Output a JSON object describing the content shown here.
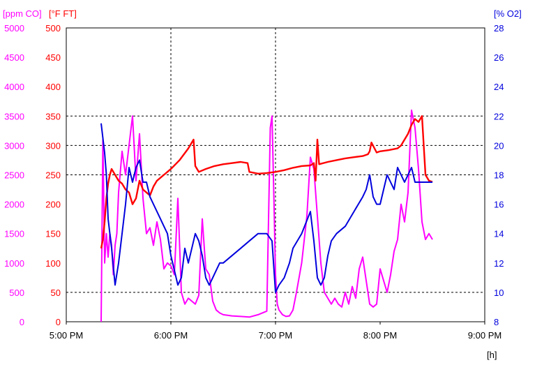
{
  "chart_data": {
    "type": "line",
    "x_ticks": [
      "5:00 PM",
      "6:00 PM",
      "7:00 PM",
      "8:00 PM",
      "9:00 PM"
    ],
    "x_unit_label": "[h]",
    "x_range_hours": [
      17,
      21
    ],
    "axes": {
      "co": {
        "label": "[ppm CO]",
        "color": "#ff00ff",
        "ylim": [
          0,
          5000
        ],
        "ticks": [
          "5000",
          "4500",
          "4000",
          "3500",
          "3000",
          "2500",
          "2000",
          "1500",
          "1000",
          "500",
          "0"
        ]
      },
      "ft": {
        "label": "[°F FT]",
        "color": "#ff0000",
        "ylim": [
          0,
          500
        ],
        "ticks": [
          "500",
          "450",
          "400",
          "350",
          "300",
          "250",
          "200",
          "150",
          "100",
          "50",
          "0"
        ]
      },
      "o2": {
        "label": "[% O2]",
        "color": "#0000dd",
        "ylim": [
          8,
          28
        ],
        "ticks": [
          "28",
          "26",
          "24",
          "22",
          "20",
          "18",
          "16",
          "14",
          "12",
          "10",
          "8"
        ]
      }
    },
    "grid": {
      "horizontal_dashed_at_ft": [
        50,
        250,
        300,
        350
      ],
      "vertical_dashed_at": [
        "6:00 PM",
        "7:00 PM"
      ]
    },
    "series": [
      {
        "axis": "co",
        "color": "#ff00ff",
        "x_time": [
          "5:20 PM",
          "5:21 PM",
          "5:22 PM",
          "5:23 PM",
          "5:24 PM",
          "5:25 PM",
          "5:26 PM",
          "5:27 PM",
          "5:28 PM",
          "5:29 PM",
          "5:30 PM",
          "5:32 PM",
          "5:34 PM",
          "5:36 PM",
          "5:38 PM",
          "5:40 PM",
          "5:42 PM",
          "5:44 PM",
          "5:46 PM",
          "5:48 PM",
          "5:50 PM",
          "5:52 PM",
          "5:54 PM",
          "5:56 PM",
          "5:58 PM",
          "6:00 PM",
          "6:02 PM",
          "6:04 PM",
          "6:06 PM",
          "6:08 PM",
          "6:10 PM",
          "6:12 PM",
          "6:14 PM",
          "6:16 PM",
          "6:18 PM",
          "6:20 PM",
          "6:22 PM",
          "6:24 PM",
          "6:26 PM",
          "6:28 PM",
          "6:30 PM",
          "6:35 PM",
          "6:40 PM",
          "6:45 PM",
          "6:50 PM",
          "6:55 PM",
          "6:57 PM",
          "6:58 PM",
          "6:59 PM",
          "7:00 PM",
          "7:01 PM",
          "7:02 PM",
          "7:04 PM",
          "7:06 PM",
          "7:08 PM",
          "7:10 PM",
          "7:12 PM",
          "7:15 PM",
          "7:18 PM",
          "7:20 PM",
          "7:22 PM",
          "7:24 PM",
          "7:26 PM",
          "7:28 PM",
          "7:30 PM",
          "7:32 PM",
          "7:34 PM",
          "7:36 PM",
          "7:38 PM",
          "7:40 PM",
          "7:42 PM",
          "7:44 PM",
          "7:46 PM",
          "7:48 PM",
          "7:50 PM",
          "7:52 PM",
          "7:54 PM",
          "7:56 PM",
          "7:58 PM",
          "8:00 PM",
          "8:02 PM",
          "8:04 PM",
          "8:06 PM",
          "8:08 PM",
          "8:10 PM",
          "8:12 PM",
          "8:14 PM",
          "8:16 PM",
          "8:18 PM",
          "8:20 PM",
          "8:22 PM",
          "8:24 PM",
          "8:26 PM",
          "8:28 PM",
          "8:30 PM"
        ],
        "values": [
          0,
          3100,
          1000,
          1500,
          1100,
          1500,
          1300,
          800,
          1300,
          1500,
          2200,
          2900,
          2500,
          3000,
          3500,
          2400,
          3200,
          2100,
          1500,
          1600,
          1300,
          1700,
          1400,
          900,
          1000,
          950,
          800,
          2100,
          500,
          300,
          400,
          350,
          300,
          450,
          1750,
          900,
          800,
          350,
          200,
          150,
          120,
          100,
          90,
          80,
          120,
          180,
          3300,
          3500,
          2200,
          800,
          300,
          200,
          120,
          90,
          100,
          200,
          500,
          1000,
          1800,
          2800,
          2600,
          1800,
          1000,
          500,
          400,
          300,
          400,
          300,
          250,
          500,
          300,
          600,
          400,
          900,
          1100,
          700,
          300,
          250,
          300,
          900,
          700,
          500,
          800,
          1200,
          1400,
          2000,
          1700,
          2200,
          3600,
          3300,
          2600,
          1700,
          1400,
          1500,
          1400
        ]
      },
      {
        "axis": "ft",
        "color": "#ff0000",
        "x_time": [
          "5:20 PM",
          "5:21 PM",
          "5:22 PM",
          "5:23 PM",
          "5:24 PM",
          "5:25 PM",
          "5:26 PM",
          "5:28 PM",
          "5:30 PM",
          "5:32 PM",
          "5:34 PM",
          "5:36 PM",
          "5:38 PM",
          "5:40 PM",
          "5:42 PM",
          "5:44 PM",
          "5:46 PM",
          "5:48 PM",
          "5:50 PM",
          "5:52 PM",
          "5:54 PM",
          "5:56 PM",
          "5:58 PM",
          "6:00 PM",
          "6:05 PM",
          "6:10 PM",
          "6:13 PM",
          "6:14 PM",
          "6:16 PM",
          "6:20 PM",
          "6:25 PM",
          "6:30 PM",
          "6:35 PM",
          "6:40 PM",
          "6:44 PM",
          "6:45 PM",
          "6:50 PM",
          "6:55 PM",
          "7:00 PM",
          "7:05 PM",
          "7:10 PM",
          "7:15 PM",
          "7:20 PM",
          "7:22 PM",
          "7:23 PM",
          "7:24 PM",
          "7:25 PM",
          "7:30 PM",
          "7:35 PM",
          "7:40 PM",
          "7:45 PM",
          "7:50 PM",
          "7:53 PM",
          "7:54 PM",
          "7:55 PM",
          "7:58 PM",
          "8:00 PM",
          "8:05 PM",
          "8:10 PM",
          "8:12 PM",
          "8:14 PM",
          "8:16 PM",
          "8:18 PM",
          "8:20 PM",
          "8:22 PM",
          "8:24 PM",
          "8:26 PM",
          "8:28 PM",
          "8:30 PM"
        ],
        "values": [
          125,
          140,
          170,
          210,
          235,
          250,
          260,
          250,
          240,
          235,
          225,
          220,
          200,
          210,
          240,
          225,
          220,
          215,
          230,
          240,
          245,
          250,
          255,
          260,
          275,
          295,
          310,
          265,
          255,
          260,
          265,
          268,
          270,
          272,
          270,
          255,
          252,
          253,
          255,
          258,
          262,
          265,
          266,
          270,
          240,
          310,
          268,
          272,
          275,
          278,
          280,
          282,
          285,
          290,
          305,
          288,
          290,
          292,
          295,
          300,
          310,
          320,
          335,
          345,
          340,
          350,
          250,
          240,
          238
        ]
      },
      {
        "axis": "o2",
        "color": "#0000dd",
        "x_time": [
          "5:20 PM",
          "5:21 PM",
          "5:22 PM",
          "5:23 PM",
          "5:24 PM",
          "5:26 PM",
          "5:28 PM",
          "5:30 PM",
          "5:32 PM",
          "5:34 PM",
          "5:36 PM",
          "5:38 PM",
          "5:40 PM",
          "5:42 PM",
          "5:44 PM",
          "5:46 PM",
          "5:48 PM",
          "5:50 PM",
          "5:52 PM",
          "5:54 PM",
          "5:56 PM",
          "5:58 PM",
          "6:00 PM",
          "6:02 PM",
          "6:04 PM",
          "6:06 PM",
          "6:08 PM",
          "6:10 PM",
          "6:12 PM",
          "6:14 PM",
          "6:16 PM",
          "6:18 PM",
          "6:20 PM",
          "6:22 PM",
          "6:24 PM",
          "6:26 PM",
          "6:28 PM",
          "6:30 PM",
          "6:35 PM",
          "6:40 PM",
          "6:45 PM",
          "6:50 PM",
          "6:55 PM",
          "6:58 PM",
          "7:00 PM",
          "7:02 PM",
          "7:05 PM",
          "7:08 PM",
          "7:10 PM",
          "7:15 PM",
          "7:20 PM",
          "7:22 PM",
          "7:24 PM",
          "7:26 PM",
          "7:28 PM",
          "7:30 PM",
          "7:32 PM",
          "7:35 PM",
          "7:40 PM",
          "7:45 PM",
          "7:50 PM",
          "7:52 PM",
          "7:54 PM",
          "7:56 PM",
          "7:58 PM",
          "8:00 PM",
          "8:02 PM",
          "8:04 PM",
          "8:06 PM",
          "8:08 PM",
          "8:10 PM",
          "8:12 PM",
          "8:14 PM",
          "8:16 PM",
          "8:18 PM",
          "8:20 PM",
          "8:22 PM",
          "8:24 PM",
          "8:26 PM",
          "8:28 PM",
          "8:30 PM"
        ],
        "values": [
          21.5,
          20.5,
          19.5,
          18,
          15,
          13,
          10.5,
          12,
          14,
          16,
          18.5,
          17.5,
          18.5,
          19,
          17.5,
          17.5,
          16.5,
          16,
          15.5,
          15,
          14.5,
          14,
          12.5,
          11.5,
          10.5,
          11,
          13,
          12,
          13,
          14,
          13.5,
          12.5,
          11,
          10.5,
          11,
          11.5,
          12,
          12,
          12.5,
          13,
          13.5,
          14,
          14,
          13.5,
          10,
          10.5,
          11,
          12,
          13,
          14,
          15.5,
          13.5,
          11,
          10.5,
          11,
          12.5,
          13.5,
          14,
          14.5,
          15.5,
          16.5,
          17,
          18,
          16.5,
          16,
          16,
          17,
          18,
          17.5,
          17,
          18.5,
          18,
          17.5,
          18,
          18.5,
          17.5,
          17.5,
          17.5,
          17.5,
          17.5,
          17.5
        ]
      }
    ]
  }
}
